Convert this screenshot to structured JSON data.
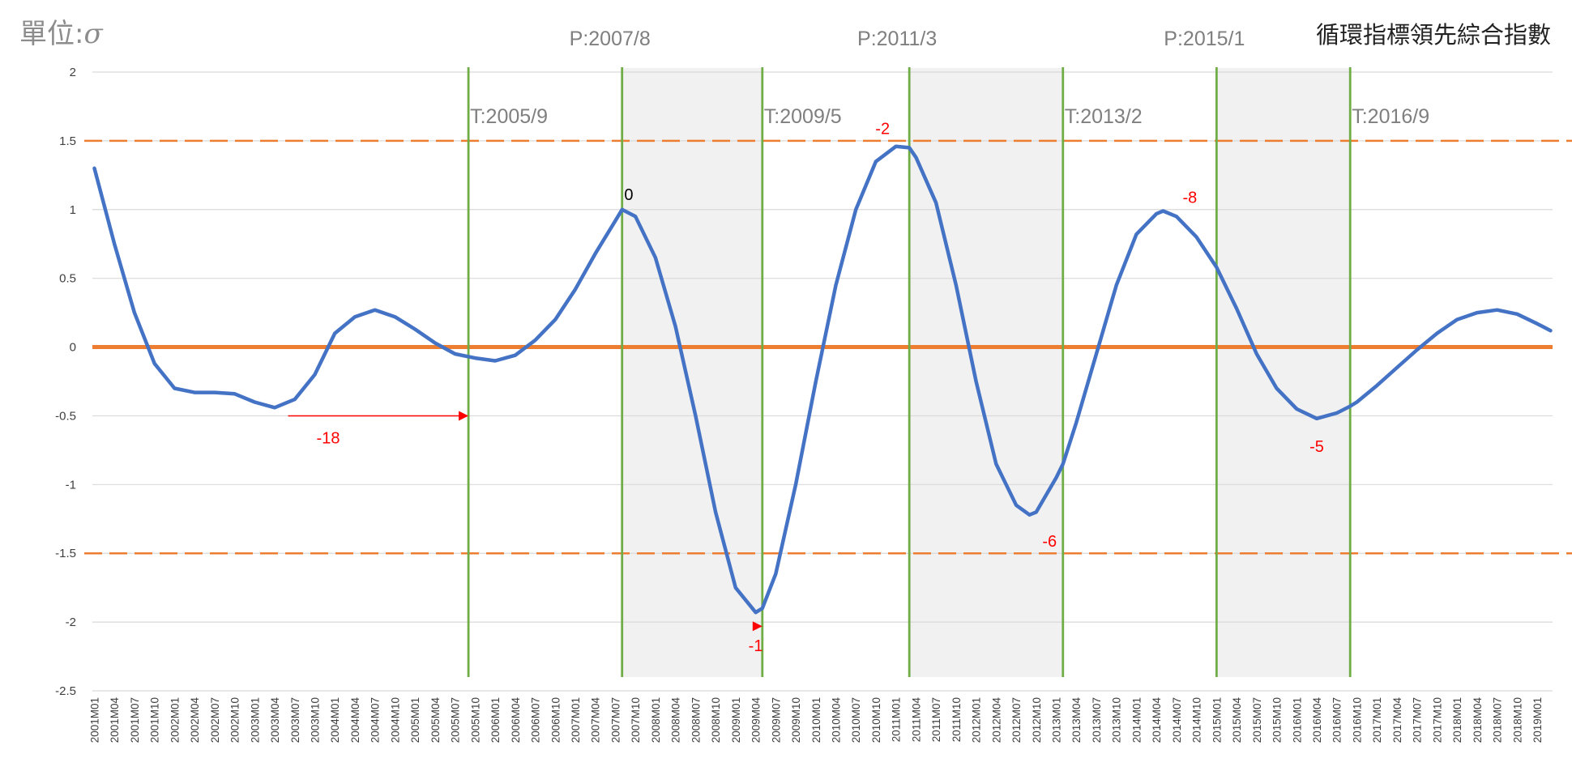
{
  "header": {
    "unit_prefix": "單位:",
    "unit_symbol": "σ",
    "title": "循環指標領先綜合指數"
  },
  "chart_data": {
    "type": "line",
    "title": "循環指標領先綜合指數",
    "ylabel": "單位:σ",
    "xlabel": "",
    "ylim": [
      -2.5,
      2
    ],
    "yticks": [
      2,
      1.5,
      1,
      0.5,
      0,
      -0.5,
      -1,
      -1.5,
      -2,
      -2.5
    ],
    "ytick_labels": [
      "2",
      "1.5",
      "1",
      "0.5",
      "0",
      "-0.5",
      "-1",
      "-1.5",
      "-2",
      "-2.5"
    ],
    "x_start": "2001-01",
    "x_end": "2019-03",
    "x_tick_labels": [
      "2001M01",
      "2001M04",
      "2001M07",
      "2001M10",
      "2002M01",
      "2002M04",
      "2002M07",
      "2002M10",
      "2003M01",
      "2003M04",
      "2003M07",
      "2003M10",
      "2004M01",
      "2004M04",
      "2004M07",
      "2004M10",
      "2005M01",
      "2005M04",
      "2005M07",
      "2005M10",
      "2006M01",
      "2006M04",
      "2006M07",
      "2006M10",
      "2007M01",
      "2007M04",
      "2007M07",
      "2007M10",
      "2008M01",
      "2008M04",
      "2008M07",
      "2008M10",
      "2009M01",
      "2009M04",
      "2009M07",
      "2009M10",
      "2010M01",
      "2010M04",
      "2010M07",
      "2010M10",
      "2011M01",
      "2011M04",
      "2011M07",
      "2011M10",
      "2012M01",
      "2012M04",
      "2012M07",
      "2012M10",
      "2013M01",
      "2013M04",
      "2013M07",
      "2013M10",
      "2014M01",
      "2014M04",
      "2014M07",
      "2014M10",
      "2015M01",
      "2015M04",
      "2015M07",
      "2015M10",
      "2016M01",
      "2016M04",
      "2016M07",
      "2016M10",
      "2017M01",
      "2017M04",
      "2017M07",
      "2017M10",
      "2018M01",
      "2018M04",
      "2018M07",
      "2018M10",
      "2019M01"
    ],
    "series": [
      {
        "color": "#4472c4",
        "points": [
          [
            "2001-01",
            1.3
          ],
          [
            "2001-04",
            0.75
          ],
          [
            "2001-07",
            0.25
          ],
          [
            "2001-10",
            -0.12
          ],
          [
            "2002-01",
            -0.3
          ],
          [
            "2002-04",
            -0.33
          ],
          [
            "2002-07",
            -0.33
          ],
          [
            "2002-10",
            -0.34
          ],
          [
            "2003-01",
            -0.4
          ],
          [
            "2003-04",
            -0.44
          ],
          [
            "2003-07",
            -0.38
          ],
          [
            "2003-10",
            -0.2
          ],
          [
            "2004-01",
            0.1
          ],
          [
            "2004-04",
            0.22
          ],
          [
            "2004-07",
            0.27
          ],
          [
            "2004-10",
            0.22
          ],
          [
            "2005-01",
            0.13
          ],
          [
            "2005-04",
            0.03
          ],
          [
            "2005-07",
            -0.05
          ],
          [
            "2005-10",
            -0.08
          ],
          [
            "2006-01",
            -0.1
          ],
          [
            "2006-04",
            -0.06
          ],
          [
            "2006-07",
            0.05
          ],
          [
            "2006-10",
            0.2
          ],
          [
            "2007-01",
            0.42
          ],
          [
            "2007-04",
            0.68
          ],
          [
            "2007-07",
            0.92
          ],
          [
            "2007-08",
            1.0
          ],
          [
            "2007-10",
            0.95
          ],
          [
            "2008-01",
            0.65
          ],
          [
            "2008-04",
            0.15
          ],
          [
            "2008-07",
            -0.5
          ],
          [
            "2008-10",
            -1.2
          ],
          [
            "2009-01",
            -1.75
          ],
          [
            "2009-04",
            -1.93
          ],
          [
            "2009-05",
            -1.9
          ],
          [
            "2009-07",
            -1.65
          ],
          [
            "2009-10",
            -1.0
          ],
          [
            "2010-01",
            -0.25
          ],
          [
            "2010-04",
            0.45
          ],
          [
            "2010-07",
            1.0
          ],
          [
            "2010-10",
            1.35
          ],
          [
            "2011-01",
            1.46
          ],
          [
            "2011-03",
            1.45
          ],
          [
            "2011-04",
            1.38
          ],
          [
            "2011-07",
            1.05
          ],
          [
            "2011-10",
            0.45
          ],
          [
            "2012-01",
            -0.25
          ],
          [
            "2012-04",
            -0.85
          ],
          [
            "2012-07",
            -1.15
          ],
          [
            "2012-09",
            -1.22
          ],
          [
            "2012-10",
            -1.2
          ],
          [
            "2013-01",
            -0.95
          ],
          [
            "2013-02",
            -0.85
          ],
          [
            "2013-04",
            -0.55
          ],
          [
            "2013-07",
            -0.05
          ],
          [
            "2013-10",
            0.45
          ],
          [
            "2014-01",
            0.82
          ],
          [
            "2014-04",
            0.97
          ],
          [
            "2014-05",
            0.99
          ],
          [
            "2014-07",
            0.95
          ],
          [
            "2014-10",
            0.8
          ],
          [
            "2015-01",
            0.58
          ],
          [
            "2015-04",
            0.28
          ],
          [
            "2015-07",
            -0.05
          ],
          [
            "2015-10",
            -0.3
          ],
          [
            "2016-01",
            -0.45
          ],
          [
            "2016-04",
            -0.52
          ],
          [
            "2016-07",
            -0.48
          ],
          [
            "2016-09",
            -0.43
          ],
          [
            "2016-10",
            -0.4
          ],
          [
            "2017-01",
            -0.28
          ],
          [
            "2017-04",
            -0.15
          ],
          [
            "2017-07",
            -0.02
          ],
          [
            "2017-10",
            0.1
          ],
          [
            "2018-01",
            0.2
          ],
          [
            "2018-04",
            0.25
          ],
          [
            "2018-07",
            0.27
          ],
          [
            "2018-10",
            0.24
          ],
          [
            "2019-01",
            0.17
          ],
          [
            "2019-03",
            0.12
          ]
        ]
      }
    ],
    "reference_lines": [
      {
        "y": 0,
        "color": "#ed7d31",
        "style": "solid"
      },
      {
        "y": 1.5,
        "color": "#ed7d31",
        "style": "dashed"
      },
      {
        "y": -1.5,
        "color": "#ed7d31",
        "style": "dashed"
      }
    ],
    "turning_point_lines": [
      {
        "date": "2005-09",
        "label": "T:2005/9"
      },
      {
        "date": "2007-08",
        "label": "P:2007/8"
      },
      {
        "date": "2009-05",
        "label": "T:2009/5"
      },
      {
        "date": "2011-03",
        "label": "P:2011/3"
      },
      {
        "date": "2013-02",
        "label": "T:2013/2"
      },
      {
        "date": "2015-01",
        "label": "P:2015/1"
      },
      {
        "date": "2016-09",
        "label": "T:2016/9"
      }
    ],
    "shaded_periods": [
      [
        "2007-08",
        "2009-05"
      ],
      [
        "2011-03",
        "2013-02"
      ],
      [
        "2015-01",
        "2016-09"
      ]
    ],
    "lead_annotations": [
      {
        "text": "-18",
        "date": "2003-12",
        "y": -0.66,
        "color": "#ff0000"
      },
      {
        "text": "0",
        "date": "2007-09",
        "y": 1.11,
        "color": "#000000"
      },
      {
        "text": "-1",
        "date": "2009-04",
        "y": -2.17,
        "color": "#ff0000"
      },
      {
        "text": "-2",
        "date": "2010-11",
        "y": 1.59,
        "color": "#ff0000"
      },
      {
        "text": "-6",
        "date": "2012-12",
        "y": -1.41,
        "color": "#ff0000"
      },
      {
        "text": "-8",
        "date": "2014-09",
        "y": 1.09,
        "color": "#ff0000"
      },
      {
        "text": "-5",
        "date": "2016-04",
        "y": -0.72,
        "color": "#ff0000"
      }
    ],
    "lead_arrows": [
      {
        "from": "2003-06",
        "to": "2005-09",
        "y": -0.5,
        "color": "#ff0000"
      },
      {
        "from": "2009-04",
        "to": "2009-05",
        "y": -2.03,
        "color": "#ff0000"
      }
    ],
    "grid": true
  }
}
